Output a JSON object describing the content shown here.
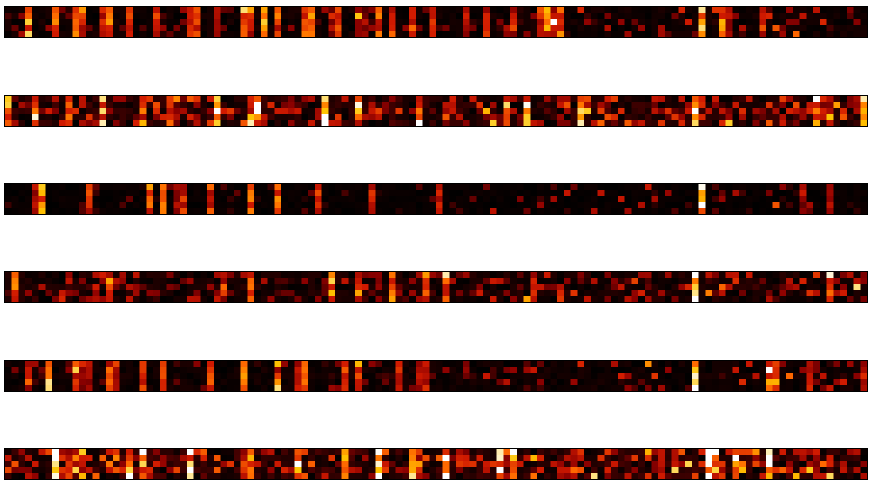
{
  "chart_data": {
    "type": "heatmap",
    "title": "",
    "xlabel": "",
    "ylabel": "",
    "colormap": "hot",
    "colormap_stops": [
      "#000000",
      "#3a0000",
      "#8a0000",
      "#d11a00",
      "#ff6a00",
      "#ffc400",
      "#ffffff"
    ],
    "grid": false,
    "legend": "none",
    "axes_visible": false,
    "cells_per_strip": {
      "columns": 128,
      "rows": 5
    },
    "value_range": [
      0,
      1
    ],
    "panels": [
      {
        "name": "",
        "style": "vertical-streaks",
        "hot_columns": [
          3,
          7,
          10,
          14,
          18,
          22,
          27,
          31,
          35,
          40,
          45,
          49,
          52,
          57,
          63,
          68,
          103
        ],
        "column_strengths": [
          0.7,
          0.55,
          0.8,
          0.5,
          0.6,
          0.55,
          0.65,
          0.5,
          0.6,
          0.7,
          0.75,
          0.6,
          0.55,
          0.55,
          0.5,
          0.45,
          1.0
        ]
      },
      {
        "name": "",
        "style": "dense-speckle",
        "hot_columns": [
          4,
          9,
          20,
          31,
          36,
          47,
          52,
          74,
          102
        ],
        "column_strengths": [
          0.6,
          0.55,
          0.6,
          0.7,
          0.55,
          0.8,
          0.6,
          0.6,
          0.85
        ]
      },
      {
        "name": "",
        "style": "sparse-streaks",
        "hot_columns": [
          5,
          12,
          23,
          30,
          36,
          40,
          46,
          54,
          103
        ],
        "column_strengths": [
          0.85,
          0.6,
          0.7,
          0.6,
          0.75,
          0.8,
          0.6,
          0.5,
          1.0
        ]
      },
      {
        "name": "",
        "style": "speckle",
        "hot_columns": [
          15,
          48,
          57,
          62,
          102
        ],
        "column_strengths": [
          0.6,
          0.8,
          0.7,
          0.7,
          0.9
        ]
      },
      {
        "name": "",
        "style": "vertical-streaks",
        "hot_columns": [
          6,
          15,
          23,
          30,
          35,
          40,
          44,
          50,
          58,
          102
        ],
        "column_strengths": [
          0.9,
          0.6,
          0.75,
          0.7,
          0.75,
          0.6,
          0.7,
          0.65,
          0.55,
          1.0
        ]
      },
      {
        "name": "",
        "style": "dense-blobs",
        "hot_columns": [
          7,
          18,
          27,
          36,
          43,
          50,
          55,
          60,
          65,
          104,
          108
        ],
        "column_strengths": [
          0.9,
          0.75,
          0.8,
          0.7,
          0.85,
          0.8,
          0.95,
          0.7,
          0.7,
          0.9,
          0.7
        ]
      }
    ]
  }
}
